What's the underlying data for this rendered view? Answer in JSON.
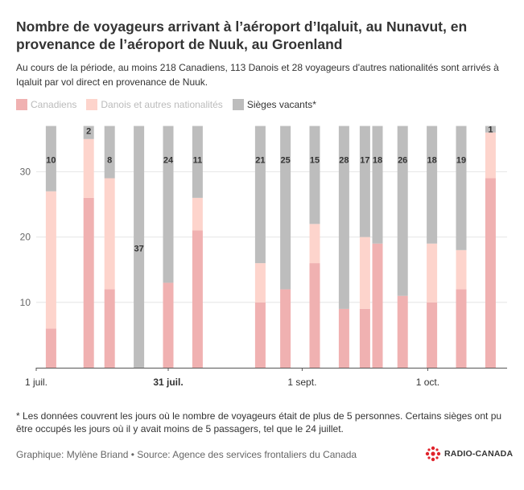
{
  "header": {
    "title": "Nombre de voyageurs arrivant à l’aéroport d’Iqaluit, au Nunavut, en provenance de l’aéroport de Nuuk, au Groenland",
    "subtitle": "Au cours de la période, au moins 218 Canadiens, 113 Danois et 28 voyageurs d'autres nationalités sont arrivés à Iqaluit par vol direct en provenance de Nuuk."
  },
  "legend": [
    {
      "label": "Canadiens",
      "color": "#f0b1b1"
    },
    {
      "label": "Danois et autres nationalités",
      "color": "#fdd4cc"
    },
    {
      "label": "Sièges vacants*",
      "color": "#bdbdbd"
    }
  ],
  "chart_data": {
    "type": "bar",
    "stacked": true,
    "ylim": [
      0,
      37
    ],
    "y_ticks": [
      10,
      20,
      30
    ],
    "x_ticks": [
      {
        "day": 0,
        "label": "1 juil.",
        "bold": false
      },
      {
        "day": 30,
        "label": "31 juil.",
        "bold": true
      },
      {
        "day": 62,
        "label": "1 sept.",
        "bold": false
      },
      {
        "day": 92,
        "label": "1 oct.",
        "bold": false
      }
    ],
    "series": [
      {
        "name": "Canadiens",
        "color": "#f0b1b1"
      },
      {
        "name": "Danois et autres nationalités",
        "color": "#fdd4cc"
      },
      {
        "name": "Sièges vacants*",
        "color": "#bdbdbd"
      }
    ],
    "bars": [
      {
        "day": 2,
        "canadiens": 6,
        "danois_autres": 21,
        "vacants": 10
      },
      {
        "day": 11,
        "canadiens": 26,
        "danois_autres": 9,
        "vacants": 2
      },
      {
        "day": 16,
        "canadiens": 12,
        "danois_autres": 17,
        "vacants": 8
      },
      {
        "day": 23,
        "canadiens": 0,
        "danois_autres": 0,
        "vacants": 37
      },
      {
        "day": 30,
        "canadiens": 13,
        "danois_autres": 0,
        "vacants": 24
      },
      {
        "day": 37,
        "canadiens": 21,
        "danois_autres": 5,
        "vacants": 11
      },
      {
        "day": 52,
        "canadiens": 10,
        "danois_autres": 6,
        "vacants": 21
      },
      {
        "day": 58,
        "canadiens": 12,
        "danois_autres": 0,
        "vacants": 25
      },
      {
        "day": 65,
        "canadiens": 16,
        "danois_autres": 6,
        "vacants": 15
      },
      {
        "day": 72,
        "canadiens": 9,
        "danois_autres": 0,
        "vacants": 28
      },
      {
        "day": 77,
        "canadiens": 9,
        "danois_autres": 11,
        "vacants": 17
      },
      {
        "day": 80,
        "canadiens": 19,
        "danois_autres": 0,
        "vacants": 18
      },
      {
        "day": 86,
        "canadiens": 11,
        "danois_autres": 0,
        "vacants": 26
      },
      {
        "day": 93,
        "canadiens": 10,
        "danois_autres": 9,
        "vacants": 18
      },
      {
        "day": 100,
        "canadiens": 12,
        "danois_autres": 6,
        "vacants": 19
      },
      {
        "day": 107,
        "canadiens": 29,
        "danois_autres": 7,
        "vacants": 1
      }
    ]
  },
  "footnote": "* Les données couvrent les jours où le nombre de voyageurs était de plus de 5 personnes. Certains sièges ont pu être occupés les jours où il y avait moins de 5 passagers, tel que le 24 juillet.",
  "credits": "Graphique: Mylène Briand • Source: Agence des services frontaliers du Canada",
  "logo": {
    "text": "RADIO-CANADA",
    "color": "#e0232b"
  }
}
